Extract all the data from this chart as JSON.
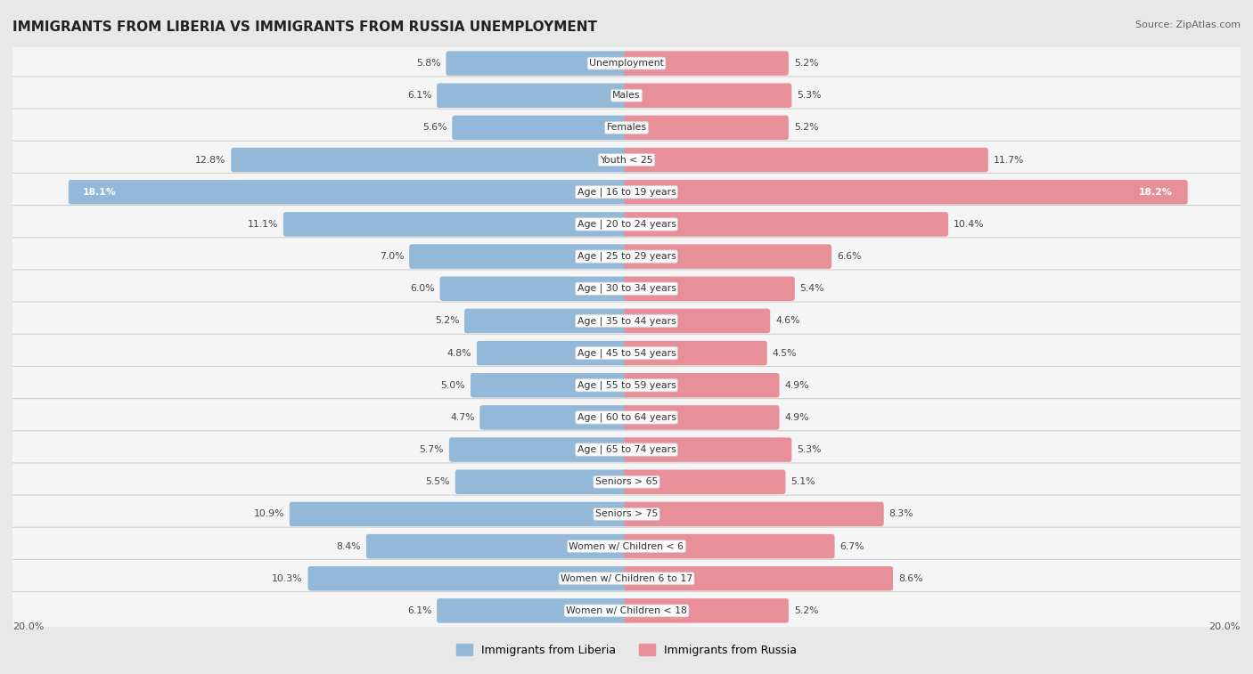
{
  "title": "IMMIGRANTS FROM LIBERIA VS IMMIGRANTS FROM RUSSIA UNEMPLOYMENT",
  "source": "Source: ZipAtlas.com",
  "categories": [
    "Unemployment",
    "Males",
    "Females",
    "Youth < 25",
    "Age | 16 to 19 years",
    "Age | 20 to 24 years",
    "Age | 25 to 29 years",
    "Age | 30 to 34 years",
    "Age | 35 to 44 years",
    "Age | 45 to 54 years",
    "Age | 55 to 59 years",
    "Age | 60 to 64 years",
    "Age | 65 to 74 years",
    "Seniors > 65",
    "Seniors > 75",
    "Women w/ Children < 6",
    "Women w/ Children 6 to 17",
    "Women w/ Children < 18"
  ],
  "liberia_values": [
    5.8,
    6.1,
    5.6,
    12.8,
    18.1,
    11.1,
    7.0,
    6.0,
    5.2,
    4.8,
    5.0,
    4.7,
    5.7,
    5.5,
    10.9,
    8.4,
    10.3,
    6.1
  ],
  "russia_values": [
    5.2,
    5.3,
    5.2,
    11.7,
    18.2,
    10.4,
    6.6,
    5.4,
    4.6,
    4.5,
    4.9,
    4.9,
    5.3,
    5.1,
    8.3,
    6.7,
    8.6,
    5.2
  ],
  "liberia_color": "#94b8d8",
  "russia_color": "#e8909a",
  "background_color": "#e8e8e8",
  "row_bg_color": "#f5f5f5",
  "row_bg_color_alt": "#ebebeb",
  "max_value": 20.0,
  "legend_liberia": "Immigrants from Liberia",
  "legend_russia": "Immigrants from Russia",
  "axis_label_left": "20.0%",
  "axis_label_right": "20.0%",
  "label_threshold": 14.0
}
